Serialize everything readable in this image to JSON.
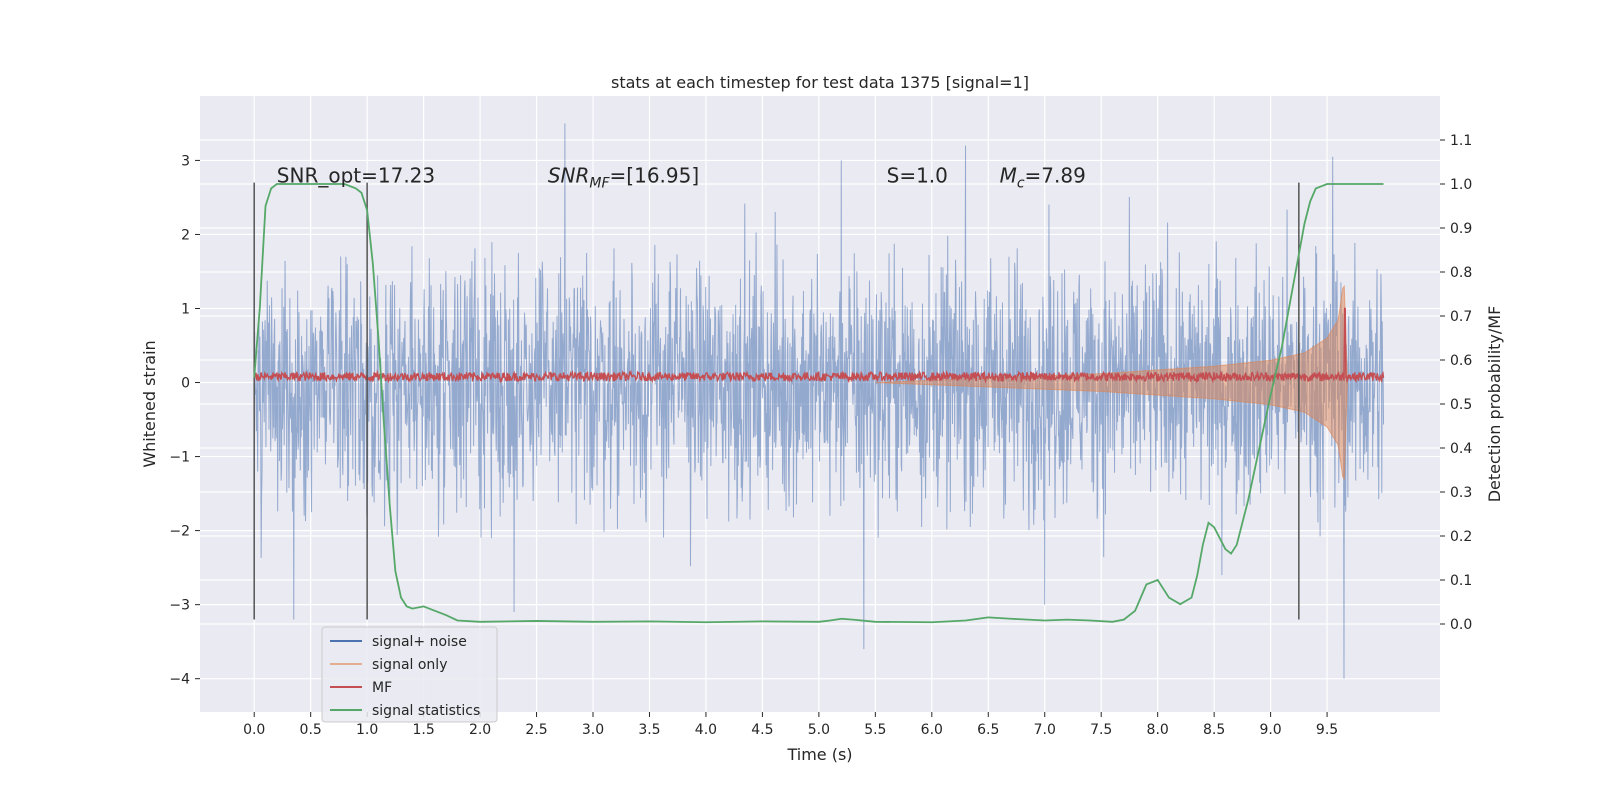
{
  "chart_data": {
    "type": "line",
    "title": "stats at each timestep for test data 1375 [signal=1]",
    "xlabel": "Time (s)",
    "ylabel": "Whitened strain",
    "ylabel_right": "Detection probability/MF",
    "xlim": [
      -0.48,
      10.5
    ],
    "ylim": [
      -4.45,
      3.87
    ],
    "ylim_right": [
      -0.2,
      1.2
    ],
    "x_ticks": [
      "0.0",
      "0.5",
      "1.0",
      "1.5",
      "2.0",
      "2.5",
      "3.0",
      "3.5",
      "4.0",
      "4.5",
      "5.0",
      "5.5",
      "6.0",
      "6.5",
      "7.0",
      "7.5",
      "8.0",
      "8.5",
      "9.0",
      "9.5"
    ],
    "y_ticks": [
      "3",
      "2",
      "1",
      "0",
      "−1",
      "−2",
      "−3",
      "−4"
    ],
    "y_ticks_right": [
      "1.1",
      "1.0",
      "0.9",
      "0.8",
      "0.7",
      "0.6",
      "0.5",
      "0.4",
      "0.3",
      "0.2",
      "0.1",
      "0.0"
    ],
    "grid": true,
    "legend_placement": "lower-left",
    "annotations": [
      {
        "prefix": "SNR_opt=17.23",
        "sub": "",
        "rest": "",
        "x": 0.2
      },
      {
        "prefix": "SNR",
        "sub": "MF",
        "rest": "=[16.95]",
        "x": 2.6
      },
      {
        "prefix": "S",
        "sub": "",
        "rest": "=1.0",
        "x": 5.6
      },
      {
        "prefix": "M",
        "sub": "c",
        "rest": "=7.89",
        "x": 6.6
      }
    ],
    "annotation_y": 2.7,
    "vertical_lines": [
      {
        "x": 0.0,
        "ymin": -3.2,
        "ymax": 2.7
      },
      {
        "x": 1.0,
        "ymin": -3.2,
        "ymax": 2.7
      },
      {
        "x": 9.25,
        "ymin": -3.2,
        "ymax": 2.7
      }
    ],
    "series": [
      {
        "name": "signal+ noise",
        "color": "#4c72b0",
        "duration": 10.0,
        "noise_sigma": 0.82,
        "peaks": [
          {
            "x": 2.75,
            "y": 3.5
          },
          {
            "x": 5.4,
            "y": -3.6
          },
          {
            "x": 9.65,
            "y": -4.0
          },
          {
            "x": 6.3,
            "y": 3.2
          },
          {
            "x": 5.2,
            "y": 3.0
          },
          {
            "x": 9.55,
            "y": 3.05
          },
          {
            "x": 0.35,
            "y": -3.2
          },
          {
            "x": 2.3,
            "y": -3.1
          },
          {
            "x": 7.0,
            "y": -3.0
          }
        ]
      },
      {
        "name": "signal only",
        "color": "#dd8452",
        "envelope": [
          {
            "x": 5.5,
            "a": 0.0
          },
          {
            "x": 6.5,
            "a": 0.06
          },
          {
            "x": 7.5,
            "a": 0.12
          },
          {
            "x": 8.5,
            "a": 0.22
          },
          {
            "x": 9.0,
            "a": 0.3
          },
          {
            "x": 9.3,
            "a": 0.4
          },
          {
            "x": 9.5,
            "a": 0.6
          },
          {
            "x": 9.6,
            "a": 0.85
          },
          {
            "x": 9.65,
            "a": 1.4
          },
          {
            "x": 9.68,
            "a": 0.0
          }
        ]
      },
      {
        "name": "MF",
        "color": "#c44e52",
        "baseline": 0.08,
        "jitter": 0.06,
        "peak": {
          "x": 9.66,
          "y": 1.0
        }
      },
      {
        "name": "signal statistics",
        "color": "#55a868",
        "x": [
          0.0,
          0.05,
          0.1,
          0.15,
          0.2,
          0.3,
          0.4,
          0.5,
          0.6,
          0.7,
          0.8,
          0.9,
          0.95,
          1.0,
          1.05,
          1.1,
          1.15,
          1.2,
          1.25,
          1.3,
          1.35,
          1.4,
          1.5,
          1.6,
          1.7,
          1.8,
          2.0,
          2.5,
          3.0,
          3.5,
          4.0,
          4.5,
          5.0,
          5.1,
          5.2,
          5.3,
          5.5,
          6.0,
          6.3,
          6.5,
          6.7,
          7.0,
          7.2,
          7.4,
          7.6,
          7.7,
          7.8,
          7.85,
          7.9,
          8.0,
          8.05,
          8.1,
          8.2,
          8.3,
          8.35,
          8.4,
          8.45,
          8.5,
          8.6,
          8.65,
          8.7,
          8.8,
          8.9,
          9.0,
          9.1,
          9.2,
          9.3,
          9.35,
          9.4,
          9.5,
          9.6,
          9.8,
          10.0
        ],
        "y": [
          0.56,
          0.72,
          0.95,
          0.99,
          1.0,
          1.0,
          1.0,
          1.0,
          1.0,
          1.0,
          1.0,
          0.99,
          0.98,
          0.94,
          0.82,
          0.65,
          0.45,
          0.27,
          0.12,
          0.06,
          0.04,
          0.035,
          0.04,
          0.03,
          0.02,
          0.008,
          0.005,
          0.007,
          0.005,
          0.006,
          0.004,
          0.006,
          0.005,
          0.008,
          0.012,
          0.01,
          0.005,
          0.004,
          0.008,
          0.015,
          0.012,
          0.008,
          0.01,
          0.008,
          0.005,
          0.01,
          0.03,
          0.06,
          0.09,
          0.1,
          0.08,
          0.06,
          0.045,
          0.06,
          0.11,
          0.18,
          0.23,
          0.22,
          0.17,
          0.16,
          0.18,
          0.28,
          0.4,
          0.52,
          0.63,
          0.77,
          0.91,
          0.96,
          0.99,
          1.0,
          1.0,
          1.0,
          1.0
        ]
      }
    ]
  }
}
